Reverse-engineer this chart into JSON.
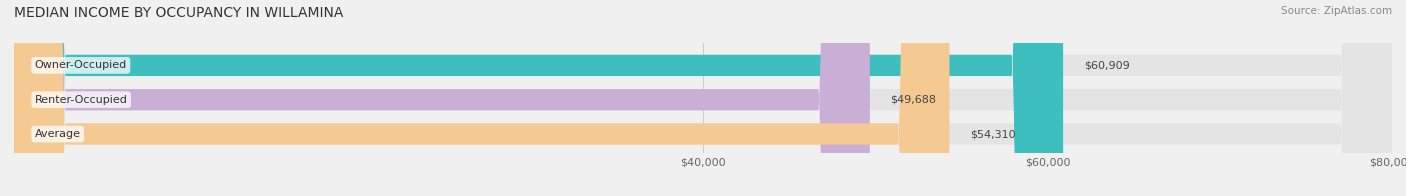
{
  "title": "MEDIAN INCOME BY OCCUPANCY IN WILLAMINA",
  "source": "Source: ZipAtlas.com",
  "categories": [
    "Owner-Occupied",
    "Renter-Occupied",
    "Average"
  ],
  "values": [
    60909,
    49688,
    54310
  ],
  "labels": [
    "$60,909",
    "$49,688",
    "$54,310"
  ],
  "bar_colors": [
    "#3dbfbf",
    "#c9aed6",
    "#f5c992"
  ],
  "background_color": "#f0f0f0",
  "bar_bg_color": "#e4e4e4",
  "xlim": [
    0,
    80000
  ],
  "title_fontsize": 10,
  "label_fontsize": 8,
  "tick_fontsize": 8,
  "source_fontsize": 7.5
}
